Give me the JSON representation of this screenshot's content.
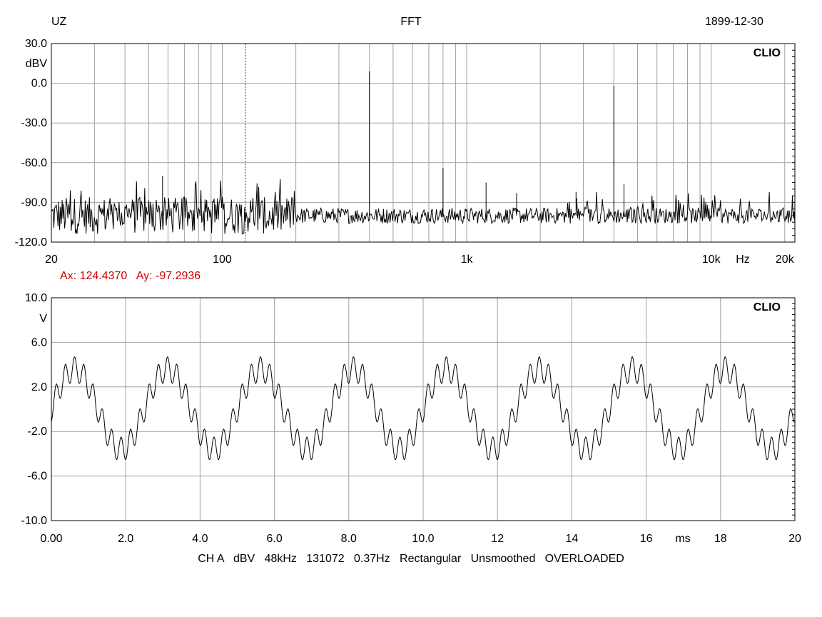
{
  "header": {
    "left": "UZ",
    "center": "FFT",
    "right": "1899-12-30"
  },
  "footer": {
    "settings": "CH A   dBV   48kHz   131072   0.37Hz   Rectangular   Unsmoothed   OVERLOADED"
  },
  "colors": {
    "trace": "#000000",
    "grid": "#a0a0a0",
    "cursor": "#cc0000",
    "cursor_text": "#cc0000"
  },
  "chart_data": [
    {
      "type": "line",
      "watermark": "CLIO",
      "ylabel": "dBV",
      "xlabel": "Hz",
      "x_scale": "log",
      "xlim": [
        20,
        22000
      ],
      "ylim": [
        -120,
        30
      ],
      "grid": true,
      "y_ticks": [
        30,
        0,
        -30,
        -60,
        -90,
        -120
      ],
      "y_tick_labels": [
        "30.0",
        "0.0",
        "-30.0",
        "-60.0",
        "-90.0",
        "-120.0"
      ],
      "x_ticks": [
        20,
        100,
        1000,
        10000,
        20000
      ],
      "x_tick_labels": [
        "20",
        "100",
        "1k",
        "10k",
        "20k"
      ],
      "noise_floor_dBV": -100,
      "peaks": [
        {
          "x": 57,
          "y": -70
        },
        {
          "x": 400,
          "y": 9
        },
        {
          "x": 800,
          "y": -64
        },
        {
          "x": 1200,
          "y": -75
        },
        {
          "x": 1600,
          "y": -83
        },
        {
          "x": 2800,
          "y": -82
        },
        {
          "x": 4000,
          "y": -2
        },
        {
          "x": 4400,
          "y": -76
        }
      ],
      "cursor": {
        "x": 124.437,
        "y": -97.2936,
        "label": "Ax: 124.4370   Ay: -97.2936"
      }
    },
    {
      "type": "line",
      "watermark": "CLIO",
      "ylabel": "V",
      "xlabel": "ms",
      "xlim": [
        0,
        20
      ],
      "ylim": [
        -10,
        10
      ],
      "grid": true,
      "y_ticks": [
        10,
        6,
        2,
        -2,
        -6,
        -10
      ],
      "y_tick_labels": [
        "10.0",
        "6.0",
        "2.0",
        "-2.0",
        "-6.0",
        "-10.0"
      ],
      "x_ticks": [
        0,
        2,
        4,
        6,
        8,
        10,
        12,
        14,
        16,
        18,
        20
      ],
      "x_tick_labels": [
        "0.00",
        "2.0",
        "4.0",
        "6.0",
        "8.0",
        "10.0",
        "12",
        "14",
        "16",
        "18",
        "20"
      ],
      "signal": {
        "fundamental_hz": 400,
        "fundamental_amplitude_v": 3.6,
        "harmonic_hz": 4000,
        "harmonic_amplitude_v": 1.1
      }
    }
  ]
}
